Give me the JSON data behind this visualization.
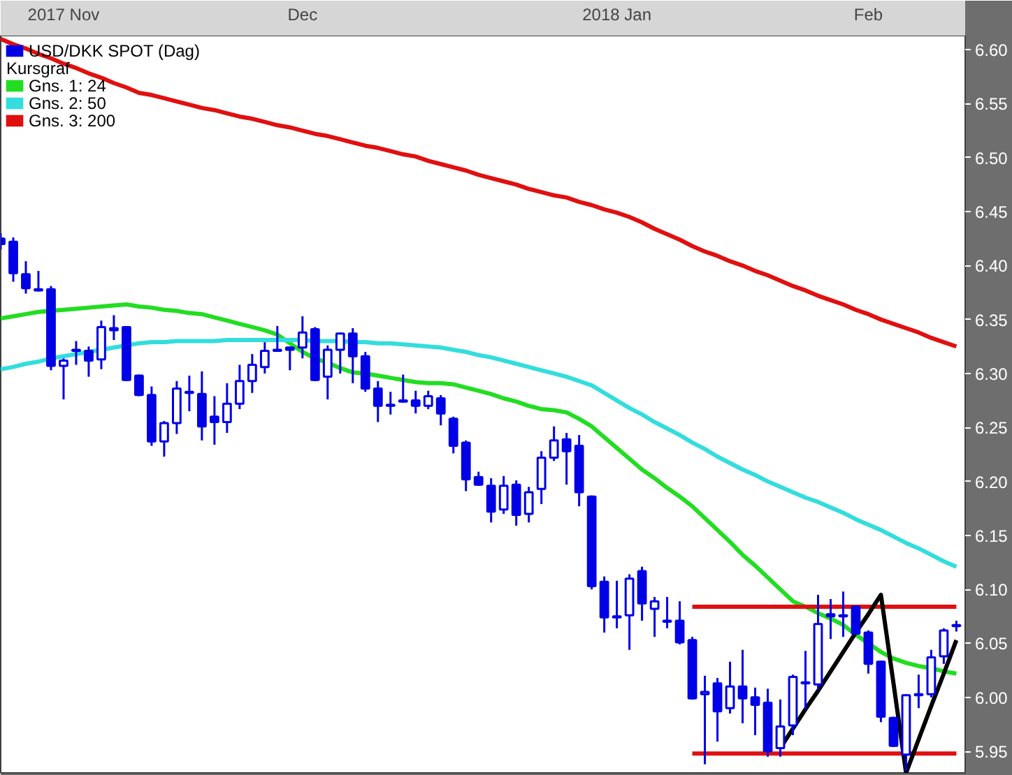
{
  "chart_data": {
    "type": "candlestick",
    "legend_title": "Kursgraf",
    "legend": "top left",
    "grid": false,
    "categories": [
      null,
      null,
      null,
      null,
      null,
      "2017 Nov",
      null,
      null,
      null,
      null,
      null,
      null,
      null,
      null,
      null,
      null,
      null,
      null,
      null,
      null,
      null,
      null,
      null,
      null,
      "Dec",
      null,
      null,
      null,
      null,
      null,
      null,
      null,
      null,
      null,
      null,
      null,
      null,
      null,
      null,
      null,
      null,
      null,
      null,
      null,
      null,
      null,
      null,
      null,
      null,
      "2018 Jan",
      null,
      null,
      null,
      null,
      null,
      null,
      null,
      null,
      null,
      null,
      null,
      null,
      null,
      null,
      null,
      null,
      null,
      null,
      null,
      "Feb",
      null,
      null,
      null,
      null,
      null,
      null,
      null
    ],
    "ylim": [
      5.93,
      6.613
    ],
    "yticks": [
      {
        "value": 5.95,
        "label": "5.95"
      },
      {
        "value": 6.0,
        "label": "6.00"
      },
      {
        "value": 6.05,
        "label": "6.05"
      },
      {
        "value": 6.1,
        "label": "6.10"
      },
      {
        "value": 6.15,
        "label": "6.15"
      },
      {
        "value": 6.2,
        "label": "6.20"
      },
      {
        "value": 6.25,
        "label": "6.25"
      },
      {
        "value": 6.3,
        "label": "6.30"
      },
      {
        "value": 6.35,
        "label": "6.35"
      },
      {
        "value": 6.4,
        "label": "6.40"
      },
      {
        "value": 6.45,
        "label": "6.45"
      },
      {
        "value": 6.5,
        "label": "6.50"
      },
      {
        "value": 6.55,
        "label": "6.55"
      },
      {
        "value": 6.6,
        "label": "6.60"
      }
    ],
    "series": [
      {
        "name": "USD/DKK SPOT (Dag)",
        "color": "#0000e6",
        "ohlc": [
          [
            6.425,
            6.43,
            6.415,
            6.42
          ],
          [
            6.422,
            6.426,
            6.385,
            6.393
          ],
          [
            6.392,
            6.404,
            6.374,
            6.379
          ],
          [
            6.378,
            6.395,
            6.376,
            6.377
          ],
          [
            6.378,
            6.381,
            6.303,
            6.307
          ],
          [
            6.307,
            6.314,
            6.276,
            6.312
          ],
          [
            6.322,
            6.33,
            6.308,
            6.321
          ],
          [
            6.321,
            6.325,
            6.297,
            6.312
          ],
          [
            6.313,
            6.349,
            6.304,
            6.343
          ],
          [
            6.342,
            6.354,
            6.331,
            6.34
          ],
          [
            6.343,
            6.344,
            6.293,
            6.294
          ],
          [
            6.298,
            6.299,
            6.279,
            6.28
          ],
          [
            6.28,
            6.288,
            6.233,
            6.237
          ],
          [
            6.237,
            6.256,
            6.223,
            6.254
          ],
          [
            6.254,
            6.293,
            6.244,
            6.286
          ],
          [
            6.283,
            6.298,
            6.265,
            6.282
          ],
          [
            6.281,
            6.302,
            6.238,
            6.251
          ],
          [
            6.26,
            6.279,
            6.234,
            6.255
          ],
          [
            6.255,
            6.291,
            6.245,
            6.272
          ],
          [
            6.272,
            6.308,
            6.267,
            6.293
          ],
          [
            6.293,
            6.318,
            6.282,
            6.308
          ],
          [
            6.306,
            6.329,
            6.3,
            6.321
          ],
          [
            6.322,
            6.344,
            6.32,
            6.321
          ],
          [
            6.324,
            6.325,
            6.303,
            6.322
          ],
          [
            6.324,
            6.353,
            6.314,
            6.338
          ],
          [
            6.341,
            6.343,
            6.293,
            6.294
          ],
          [
            6.297,
            6.326,
            6.276,
            6.322
          ],
          [
            6.322,
            6.338,
            6.3,
            6.337
          ],
          [
            6.337,
            6.342,
            6.291,
            6.316
          ],
          [
            6.316,
            6.32,
            6.283,
            6.286
          ],
          [
            6.286,
            6.293,
            6.255,
            6.27
          ],
          [
            6.271,
            6.283,
            6.262,
            6.27
          ],
          [
            6.275,
            6.299,
            6.273,
            6.274
          ],
          [
            6.275,
            6.284,
            6.263,
            6.27
          ],
          [
            6.27,
            6.284,
            6.267,
            6.279
          ],
          [
            6.277,
            6.28,
            6.252,
            6.263
          ],
          [
            6.258,
            6.26,
            6.226,
            6.233
          ],
          [
            6.236,
            6.238,
            6.191,
            6.202
          ],
          [
            6.204,
            6.209,
            6.196,
            6.197
          ],
          [
            6.196,
            6.203,
            6.162,
            6.172
          ],
          [
            6.174,
            6.205,
            6.17,
            6.196
          ],
          [
            6.197,
            6.201,
            6.159,
            6.169
          ],
          [
            6.17,
            6.195,
            6.162,
            6.19
          ],
          [
            6.193,
            6.228,
            6.179,
            6.222
          ],
          [
            6.222,
            6.251,
            6.219,
            6.238
          ],
          [
            6.239,
            6.245,
            6.197,
            6.228
          ],
          [
            6.233,
            6.243,
            6.177,
            6.19
          ],
          [
            6.186,
            6.187,
            6.1,
            6.103
          ],
          [
            6.107,
            6.112,
            6.06,
            6.074
          ],
          [
            6.075,
            6.108,
            6.064,
            6.074
          ],
          [
            6.076,
            6.114,
            6.044,
            6.11
          ],
          [
            6.117,
            6.121,
            6.071,
            6.087
          ],
          [
            6.082,
            6.093,
            6.056,
            6.089
          ],
          [
            6.071,
            6.093,
            6.064,
            6.07
          ],
          [
            6.071,
            6.089,
            6.049,
            6.051
          ],
          [
            6.053,
            6.056,
            5.998,
            5.999
          ],
          [
            6.003,
            6.02,
            5.938,
            6.005
          ],
          [
            6.013,
            6.018,
            5.959,
            5.987
          ],
          [
            5.99,
            6.033,
            5.985,
            6.01
          ],
          [
            6.01,
            6.044,
            5.976,
            5.999
          ],
          [
            6.0,
            6.009,
            5.965,
            5.993
          ],
          [
            5.995,
            6.008,
            5.945,
            5.95
          ],
          [
            5.953,
            5.998,
            5.945,
            5.973
          ],
          [
            5.974,
            6.021,
            5.965,
            6.019
          ],
          [
            6.014,
            6.043,
            5.989,
            6.013
          ],
          [
            6.012,
            6.095,
            6.007,
            6.068
          ],
          [
            6.075,
            6.091,
            6.054,
            6.077
          ],
          [
            6.076,
            6.098,
            6.056,
            6.075
          ],
          [
            6.084,
            6.085,
            6.058,
            6.059
          ],
          [
            6.06,
            6.062,
            6.022,
            6.031
          ],
          [
            6.033,
            6.034,
            5.977,
            5.982
          ],
          [
            5.981,
            5.982,
            5.954,
            5.955
          ],
          [
            5.947,
            6.003,
            5.932,
            6.002
          ],
          [
            6.002,
            6.021,
            5.99,
            6.003
          ],
          [
            6.003,
            6.044,
            6.0,
            6.037
          ],
          [
            6.038,
            6.064,
            6.031,
            6.062
          ],
          [
            6.066,
            6.071,
            6.061,
            6.067
          ]
        ]
      },
      {
        "name": "Gns. 1: 24",
        "type": "line",
        "color": "#22dd22",
        "values": [
          6.351,
          6.353,
          6.355,
          6.357,
          6.358,
          6.359,
          6.36,
          6.361,
          6.362,
          6.363,
          6.364,
          6.362,
          6.361,
          6.359,
          6.358,
          6.356,
          6.355,
          6.352,
          6.349,
          6.346,
          6.343,
          6.34,
          6.336,
          6.328,
          6.32,
          6.314,
          6.31,
          6.305,
          6.301,
          6.3,
          6.298,
          6.296,
          6.294,
          6.292,
          6.291,
          6.291,
          6.29,
          6.287,
          6.284,
          6.281,
          6.277,
          6.274,
          6.27,
          6.267,
          6.266,
          6.264,
          6.258,
          6.251,
          6.241,
          6.231,
          6.221,
          6.211,
          6.203,
          6.194,
          6.186,
          6.177,
          6.166,
          6.155,
          6.144,
          6.132,
          6.122,
          6.111,
          6.1,
          6.089,
          6.084,
          6.078,
          6.073,
          6.067,
          6.058,
          6.05,
          6.042,
          6.036,
          6.032,
          6.029,
          6.027,
          6.024,
          6.022
        ]
      },
      {
        "name": "Gns. 2: 50",
        "type": "line",
        "color": "#33dddd",
        "values": [
          6.304,
          6.306,
          6.309,
          6.311,
          6.314,
          6.316,
          6.318,
          6.32,
          6.322,
          6.324,
          6.326,
          6.328,
          6.329,
          6.329,
          6.33,
          6.33,
          6.33,
          6.33,
          6.331,
          6.331,
          6.331,
          6.331,
          6.331,
          6.331,
          6.331,
          6.33,
          6.33,
          6.33,
          6.329,
          6.329,
          6.328,
          6.328,
          6.327,
          6.326,
          6.325,
          6.324,
          6.322,
          6.32,
          6.317,
          6.315,
          6.312,
          6.309,
          6.306,
          6.303,
          6.3,
          6.297,
          6.293,
          6.289,
          6.282,
          6.275,
          6.268,
          6.262,
          6.255,
          6.249,
          6.243,
          6.236,
          6.23,
          6.223,
          6.217,
          6.211,
          6.206,
          6.2,
          6.195,
          6.19,
          6.185,
          6.181,
          6.176,
          6.171,
          6.165,
          6.16,
          6.155,
          6.149,
          6.143,
          6.138,
          6.132,
          6.126,
          6.121
        ]
      },
      {
        "name": "Gns. 3: 200",
        "type": "line",
        "color": "#e01010",
        "values": [
          6.61,
          6.605,
          6.601,
          6.596,
          6.592,
          6.587,
          6.583,
          6.578,
          6.574,
          6.569,
          6.565,
          6.56,
          6.558,
          6.555,
          6.552,
          6.549,
          6.546,
          6.544,
          6.541,
          6.538,
          6.536,
          6.533,
          6.53,
          6.528,
          6.525,
          6.522,
          6.52,
          6.517,
          6.514,
          6.511,
          6.509,
          6.506,
          6.503,
          6.501,
          6.497,
          6.494,
          6.491,
          6.488,
          6.484,
          6.481,
          6.478,
          6.475,
          6.471,
          6.468,
          6.465,
          6.463,
          6.459,
          6.456,
          6.452,
          6.449,
          6.445,
          6.44,
          6.434,
          6.429,
          6.424,
          6.418,
          6.413,
          6.409,
          6.404,
          6.4,
          6.395,
          6.391,
          6.386,
          6.381,
          6.377,
          6.372,
          6.368,
          6.364,
          6.359,
          6.355,
          6.35,
          6.346,
          6.342,
          6.338,
          6.333,
          6.329,
          6.325
        ]
      },
      {
        "type": "line",
        "color": "#e01010",
        "values": [
          null,
          null,
          null,
          null,
          null,
          null,
          null,
          null,
          null,
          null,
          null,
          null,
          null,
          null,
          null,
          null,
          null,
          null,
          null,
          null,
          null,
          null,
          null,
          null,
          null,
          null,
          null,
          null,
          null,
          null,
          null,
          null,
          null,
          null,
          null,
          null,
          null,
          null,
          null,
          null,
          null,
          null,
          null,
          null,
          null,
          null,
          null,
          null,
          null,
          null,
          null,
          null,
          null,
          null,
          null,
          6.084,
          6.084,
          6.084,
          6.084,
          6.084,
          6.084,
          6.084,
          6.084,
          6.084,
          6.084,
          6.084,
          6.084,
          6.084,
          6.084,
          6.084,
          6.084,
          6.084,
          6.084,
          6.084,
          6.084,
          6.084,
          6.084
        ]
      },
      {
        "type": "line",
        "color": "#e01010",
        "values": [
          null,
          null,
          null,
          null,
          null,
          null,
          null,
          null,
          null,
          null,
          null,
          null,
          null,
          null,
          null,
          null,
          null,
          null,
          null,
          null,
          null,
          null,
          null,
          null,
          null,
          null,
          null,
          null,
          null,
          null,
          null,
          null,
          null,
          null,
          null,
          null,
          null,
          null,
          null,
          null,
          null,
          null,
          null,
          null,
          null,
          null,
          null,
          null,
          null,
          null,
          null,
          null,
          null,
          null,
          null,
          5.948,
          5.948,
          5.948,
          5.948,
          5.948,
          5.948,
          5.948,
          5.948,
          5.948,
          5.948,
          5.948,
          5.948,
          5.948,
          5.948,
          5.948,
          5.948,
          5.948,
          5.948,
          5.948,
          5.948,
          5.948,
          5.948
        ]
      },
      {
        "type": "line",
        "color": "#000000",
        "values": [
          null,
          null,
          null,
          null,
          null,
          null,
          null,
          null,
          null,
          null,
          null,
          null,
          null,
          null,
          null,
          null,
          null,
          null,
          null,
          null,
          null,
          null,
          null,
          null,
          null,
          null,
          null,
          null,
          null,
          null,
          null,
          null,
          null,
          null,
          null,
          null,
          null,
          null,
          null,
          null,
          null,
          null,
          null,
          null,
          null,
          null,
          null,
          null,
          null,
          null,
          null,
          null,
          null,
          null,
          null,
          null,
          null,
          null,
          null,
          null,
          null,
          null,
          5.953,
          5.971,
          5.989,
          6.006,
          6.024,
          6.042,
          6.06,
          6.077,
          6.095,
          6.013,
          5.93,
          5.961,
          5.992,
          6.022,
          6.053
        ]
      }
    ]
  }
}
